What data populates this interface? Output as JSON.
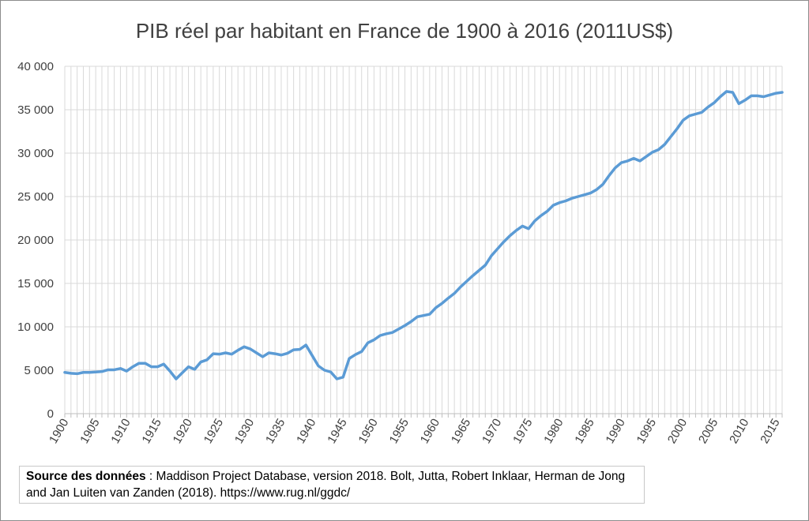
{
  "chart_data": {
    "type": "line",
    "title": "PIB réel par habitant en France de 1900 à 2016 (2011US$)",
    "xlabel": "",
    "ylabel": "",
    "xlim": [
      1900,
      2016
    ],
    "ylim": [
      0,
      40000
    ],
    "y_ticks": [
      0,
      5000,
      10000,
      15000,
      20000,
      25000,
      30000,
      35000,
      40000
    ],
    "y_tick_labels": [
      "0",
      "5 000",
      "10 000",
      "15 000",
      "20 000",
      "25 000",
      "30 000",
      "35 000",
      "40 000"
    ],
    "x_tick_labels": [
      "1900",
      "1905",
      "1910",
      "1915",
      "1920",
      "1925",
      "1930",
      "1935",
      "1940",
      "1945",
      "1950",
      "1955",
      "1960",
      "1965",
      "1970",
      "1975",
      "1980",
      "1985",
      "1990",
      "1995",
      "2000",
      "2005",
      "2010",
      "2015"
    ],
    "grid": "vertical and horizontal",
    "color": "#5b9bd5",
    "series": [
      {
        "x": [
          1900,
          1901,
          1902,
          1903,
          1904,
          1905,
          1906,
          1907,
          1908,
          1909,
          1910,
          1911,
          1912,
          1913,
          1914,
          1915,
          1916,
          1917,
          1918,
          1919,
          1920,
          1921,
          1922,
          1923,
          1924,
          1925,
          1926,
          1927,
          1928,
          1929,
          1930,
          1931,
          1932,
          1933,
          1934,
          1935,
          1936,
          1937,
          1938,
          1939,
          1940,
          1941,
          1942,
          1943,
          1944,
          1945,
          1946,
          1947,
          1948,
          1949,
          1950,
          1951,
          1952,
          1953,
          1954,
          1955,
          1956,
          1957,
          1958,
          1959,
          1960,
          1961,
          1962,
          1963,
          1964,
          1965,
          1966,
          1967,
          1968,
          1969,
          1970,
          1971,
          1972,
          1973,
          1974,
          1975,
          1976,
          1977,
          1978,
          1979,
          1980,
          1981,
          1982,
          1983,
          1984,
          1985,
          1986,
          1987,
          1988,
          1989,
          1990,
          1991,
          1992,
          1993,
          1994,
          1995,
          1996,
          1997,
          1998,
          1999,
          2000,
          2001,
          2002,
          2003,
          2004,
          2005,
          2006,
          2007,
          2008,
          2009,
          2010,
          2011,
          2012,
          2013,
          2014,
          2015,
          2016
        ],
        "values": [
          4750,
          4650,
          4600,
          4750,
          4750,
          4800,
          4850,
          5050,
          5050,
          5200,
          4900,
          5400,
          5800,
          5800,
          5400,
          5400,
          5700,
          4900,
          4000,
          4700,
          5400,
          5100,
          5950,
          6200,
          6900,
          6850,
          7000,
          6850,
          7300,
          7700,
          7450,
          7000,
          6550,
          7000,
          6900,
          6750,
          6950,
          7350,
          7400,
          7900,
          6700,
          5500,
          5000,
          4800,
          4000,
          4200,
          6350,
          6800,
          7150,
          8150,
          8500,
          9000,
          9200,
          9350,
          9750,
          10150,
          10600,
          11150,
          11300,
          11450,
          12200,
          12700,
          13300,
          13850,
          14600,
          15250,
          15900,
          16500,
          17100,
          18200,
          19000,
          19800,
          20500,
          21100,
          21600,
          21300,
          22200,
          22800,
          23300,
          24000,
          24300,
          24500,
          24800,
          25000,
          25200,
          25400,
          25800,
          26400,
          27400,
          28300,
          28900,
          29100,
          29400,
          29100,
          29600,
          30100,
          30400,
          31000,
          31900,
          32800,
          33800,
          34300,
          34500,
          34700,
          35300,
          35800,
          36500,
          37100,
          37000,
          35700,
          36100,
          36600,
          36600,
          36500,
          36700,
          36900,
          37000
        ]
      }
    ]
  },
  "source": {
    "label": "Source des données",
    "text": " : Maddison Project Database, version 2018. Bolt, Jutta, Robert Inklaar, Herman de Jong and Jan Luiten van Zanden (2018). https://www.rug.nl/ggdc/"
  }
}
